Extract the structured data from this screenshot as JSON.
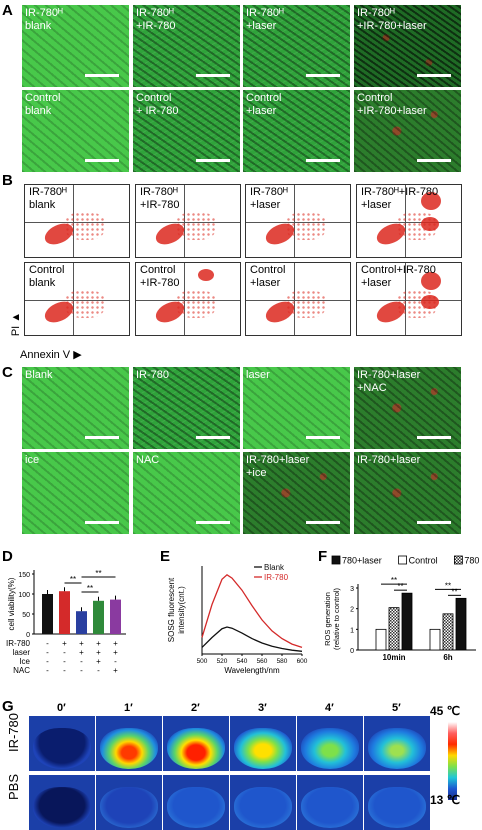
{
  "panel_labels": [
    "A",
    "B",
    "C",
    "D",
    "E",
    "F",
    "G"
  ],
  "A": {
    "row1": [
      "IR-780ᴴ\nblank",
      "IR-780ᴴ\n+IR-780",
      "IR-780ᴴ\n+laser",
      "IR-780ᴴ\n+IR-780+laser"
    ],
    "row2": [
      "Control\nblank",
      "Control\n+ IR-780",
      "Control\n+laser",
      "Control\n+IR-780+laser"
    ]
  },
  "B": {
    "row1": [
      "IR-780ᴴ\nblank",
      "IR-780ᴴ\n+IR-780",
      "IR-780ᴴ\n+laser",
      "IR-780ᴴ+IR-780\n+laser"
    ],
    "row2": [
      "Control\nblank",
      "Control\n+IR-780",
      "Control\n+laser",
      "Control+IR-780\n+laser"
    ],
    "y_axis": "PI",
    "x_axis": "Annexin V"
  },
  "C": {
    "row1": [
      "Blank",
      "IR-780",
      "laser",
      "IR-780+laser\n+NAC"
    ],
    "row2": [
      "ice",
      "NAC",
      "IR-780+laser\n+ice",
      "IR-780+laser"
    ]
  },
  "chart_data": [
    {
      "panel": "D",
      "type": "bar",
      "ylabel": "cell viability(%)",
      "ylim": [
        0,
        150
      ],
      "yticks": [
        0,
        50,
        100,
        150
      ],
      "values": [
        100,
        107,
        57,
        83,
        86
      ],
      "colors": [
        "#111111",
        "#d42a2a",
        "#2a3fa0",
        "#2f8a3a",
        "#8a3aa0"
      ],
      "matrix_rows": [
        {
          "label": "IR-780",
          "cells": [
            "-",
            "+",
            "+",
            "+",
            "+"
          ]
        },
        {
          "label": "laser",
          "cells": [
            "-",
            "-",
            "+",
            "+",
            "+"
          ]
        },
        {
          "label": "Ice",
          "cells": [
            "-",
            "-",
            "-",
            "+",
            "-"
          ]
        },
        {
          "label": "NAC",
          "cells": [
            "-",
            "-",
            "-",
            "-",
            "+"
          ]
        }
      ],
      "significance": [
        "**",
        "**",
        "**"
      ]
    },
    {
      "panel": "E",
      "type": "line",
      "ylabel": "SOSG fluorescent\nintensity(cnt.)",
      "xlabel": "Wavelength/nm",
      "xlim": [
        500,
        600
      ],
      "xticks": [
        500,
        520,
        540,
        560,
        580,
        600
      ],
      "series": [
        {
          "name": "Blank",
          "color": "#111111",
          "x": [
            500,
            510,
            520,
            525,
            530,
            540,
            550,
            560,
            570,
            580,
            590,
            600
          ],
          "y": [
            600,
            1500,
            2300,
            2450,
            2350,
            1900,
            1400,
            1000,
            700,
            500,
            350,
            250
          ]
        },
        {
          "name": "IR-780",
          "color": "#d42a2a",
          "x": [
            500,
            510,
            520,
            525,
            530,
            540,
            550,
            560,
            570,
            580,
            590,
            600
          ],
          "y": [
            1500,
            4500,
            6800,
            7200,
            6900,
            5800,
            4400,
            3100,
            2100,
            1400,
            900,
            600
          ]
        }
      ]
    },
    {
      "panel": "F",
      "type": "bar",
      "ylabel": "ROS generation\n(relative to control)",
      "categories": [
        "10min",
        "6h"
      ],
      "ylim": [
        0,
        3
      ],
      "yticks": [
        0,
        1,
        2,
        3
      ],
      "series": [
        {
          "name": "Control",
          "values": [
            1.0,
            1.0
          ]
        },
        {
          "name": "780",
          "values": [
            2.05,
            1.75
          ]
        },
        {
          "name": "780+laser",
          "values": [
            2.75,
            2.5
          ]
        }
      ],
      "significance": [
        "**",
        "**",
        "**",
        "**"
      ]
    }
  ],
  "G": {
    "times": [
      "0′",
      "1′",
      "2′",
      "3′",
      "4′",
      "5′"
    ],
    "rows": [
      "IR-780",
      "PBS"
    ],
    "scale_max": "45 ℃",
    "scale_min": "13 ℃"
  }
}
